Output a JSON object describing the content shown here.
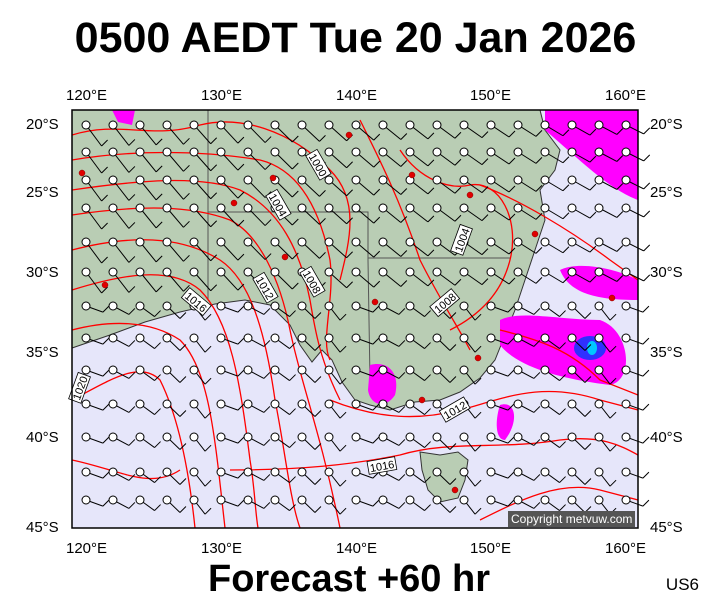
{
  "title": "0500 AEDT Tue 20 Jan 2026",
  "footer": "Forecast +60 hr",
  "model_code": "US6",
  "copyright": "Copyright metvuw.com",
  "lon_ticks": [
    "120°E",
    "130°E",
    "140°E",
    "150°E",
    "160°E"
  ],
  "lat_ticks": [
    "20°S",
    "25°S",
    "30°S",
    "35°S",
    "40°S",
    "45°S"
  ],
  "isobar_labels": [
    "1000",
    "1004",
    "1008",
    "1012",
    "1016",
    "1020",
    "1004",
    "1008",
    "1012",
    "1016"
  ],
  "colors": {
    "ocean": "#e6e6fa",
    "land": "#b9cdb4",
    "isobar": "#ff0000",
    "rain_light": "#ff00ff",
    "rain_heavy": "#3030ff",
    "rain_core": "#00c8ff"
  }
}
